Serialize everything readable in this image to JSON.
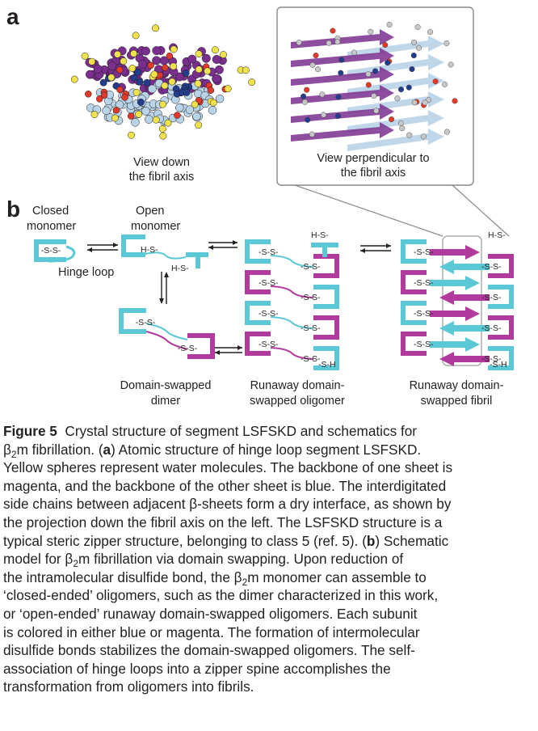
{
  "figure": {
    "panel_a_letter": "a",
    "panel_b_letter": "b",
    "panel_a_view_down": [
      "View down",
      "the fibril axis"
    ],
    "panel_a_view_perpendicular": [
      "View perpendicular to",
      "the fibril axis"
    ],
    "schematic": {
      "closed_monomer": [
        "Closed",
        "monomer"
      ],
      "open_monomer": [
        "Open",
        "monomer"
      ],
      "hinge_loop": "Hinge loop",
      "disulfide": "-S-S-",
      "reduced_h_left": "H-S-",
      "reduced_h_right": "-S-H",
      "domain_swapped_dimer": [
        "Domain-swapped",
        "dimer"
      ],
      "runaway_oligomer": [
        "Runaway domain-",
        "swapped oligomer"
      ],
      "runaway_fibril": [
        "Runaway domain-",
        "swapped fibril"
      ]
    },
    "colors": {
      "cyan": "#5bc8d6",
      "magenta": "#b13a9c",
      "purple": "#7a2f8e",
      "ice_blue": "#b9d3e8",
      "navy": "#243c8c",
      "red": "#e03a2b",
      "yellow": "#f0e24a"
    }
  },
  "caption": {
    "title": "Figure 5",
    "line1_rest": "Crystal structure of segment LSFSKD and schematics for",
    "line2_beta": "β",
    "line2_sub": "2",
    "line2_m": "m fibrillation. (",
    "line2_a": "a",
    "line2_rest": ") Atomic structure of hinge loop segment LSFSKD.",
    "line3": "Yellow spheres represent water molecules. The backbone of one sheet is",
    "line4": "magenta, and the backbone of the other sheet is blue. The interdigitated",
    "line5": "side chains between adjacent β-sheets form a dry interface, as shown by",
    "line6": "the projection down the fibril axis on the left. The LSFSKD structure is a",
    "line7_pre": "typical steric zipper structure, belonging to class 5 (ref. 5). (",
    "line7_b": "b",
    "line7_post": ") Schematic",
    "line8_pre": "model for β",
    "line8_sub": "2",
    "line8_post": "m fibrillation via domain swapping. Upon reduction of",
    "line9_pre": "the intramolecular disulfide bond, the β",
    "line9_sub": "2",
    "line9_post": "m monomer can assemble to",
    "line10": "‘closed-ended’ oligomers, such as the dimer characterized in this work,",
    "line11": "or ‘open-ended’ runaway domain-swapped oligomers. Each subunit",
    "line12": "is colored in either blue or magenta. The formation of intermolecular",
    "line13": "disulfide bonds stabilizes the domain-swapped oligomers. The self-",
    "line14": "association of hinge loops into a zipper spine accomplishes the",
    "line15": "transformation from oligomers into fibrils."
  }
}
